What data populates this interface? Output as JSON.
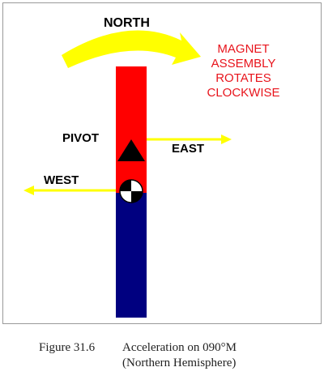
{
  "labels": {
    "north": "NORTH",
    "pivot": "PIVOT",
    "east": "EAST",
    "west": "WEST"
  },
  "note_lines": [
    "MAGNET",
    "ASSEMBLY",
    "ROTATES",
    "CLOCKWISE"
  ],
  "caption": {
    "figure": "Figure 31.6",
    "line1": "Acceleration on 090°M",
    "line2": "(Northern Hemisphere)"
  },
  "colors": {
    "bar_top": "#ff0000",
    "bar_bottom": "#000080",
    "arrow": "#ffff00",
    "note_text": "#e8141c",
    "pivot": "#000000"
  }
}
